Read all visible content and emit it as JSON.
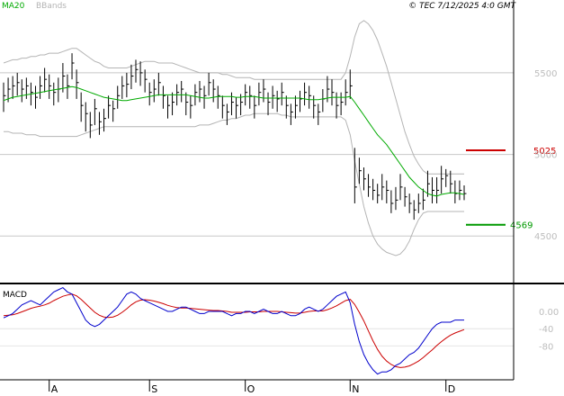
{
  "header": {
    "ma_label": "MA20",
    "bands_label": "BBands",
    "copyright": "© TEC 7/12/2025 4:0 GMT"
  },
  "colors": {
    "bars": "#000000",
    "ma": "#00aa00",
    "bands": "#b4b4b4",
    "grid": "#c8c8c8",
    "resistance": "#cc0000",
    "support": "#009900",
    "macd_line": "#0000cc",
    "signal_line": "#cc0000",
    "separator": "#000000"
  },
  "chart_data": [
    {
      "type": "ohlc",
      "name": "price",
      "x": [
        "Jul 18",
        "Jul 19",
        "Jul 22",
        "Jul 23",
        "Jul 24",
        "Jul 25",
        "Jul 26",
        "Jul 29",
        "Jul 30",
        "Jul 31",
        "Aug 1",
        "Aug 2",
        "Aug 5",
        "Aug 6",
        "Aug 7",
        "Aug 8",
        "Aug 9",
        "Aug 12",
        "Aug 13",
        "Aug 14",
        "Aug 15",
        "Aug 16",
        "Aug 19",
        "Aug 20",
        "Aug 21",
        "Aug 22",
        "Aug 23",
        "Aug 26",
        "Aug 27",
        "Aug 28",
        "Aug 29",
        "Aug 30",
        "Sep 2",
        "Sep 3",
        "Sep 4",
        "Sep 5",
        "Sep 6",
        "Sep 9",
        "Sep 10",
        "Sep 11",
        "Sep 12",
        "Sep 13",
        "Sep 16",
        "Sep 17",
        "Sep 18",
        "Sep 19",
        "Sep 20",
        "Sep 23",
        "Sep 24",
        "Sep 25",
        "Sep 26",
        "Sep 27",
        "Sep 30",
        "Oct 1",
        "Oct 2",
        "Oct 3",
        "Oct 4",
        "Oct 7",
        "Oct 8",
        "Oct 9",
        "Oct 10",
        "Oct 11",
        "Oct 14",
        "Oct 15",
        "Oct 16",
        "Oct 17",
        "Oct 18",
        "Oct 21",
        "Oct 22",
        "Oct 23",
        "Oct 24",
        "Oct 25",
        "Oct 28",
        "Oct 29",
        "Oct 30",
        "Oct 31",
        "Nov 1",
        "Nov 4",
        "Nov 5",
        "Nov 6",
        "Nov 7",
        "Nov 8",
        "Nov 11",
        "Nov 12",
        "Nov 13",
        "Nov 14",
        "Nov 15",
        "Nov 18",
        "Nov 19",
        "Nov 20",
        "Nov 21",
        "Nov 22",
        "Nov 25",
        "Nov 26",
        "Nov 27",
        "Nov 28",
        "Nov 29",
        "Dec 2",
        "Dec 3",
        "Dec 4",
        "Dec 5",
        "Dec 6"
      ],
      "close": [
        5360,
        5400,
        5420,
        5440,
        5400,
        5420,
        5380,
        5350,
        5420,
        5460,
        5420,
        5380,
        5400,
        5480,
        5420,
        5560,
        5440,
        5300,
        5250,
        5180,
        5280,
        5200,
        5220,
        5300,
        5280,
        5360,
        5420,
        5430,
        5480,
        5520,
        5500,
        5460,
        5380,
        5400,
        5440,
        5360,
        5300,
        5320,
        5380,
        5400,
        5320,
        5300,
        5380,
        5400,
        5360,
        5440,
        5400,
        5360,
        5300,
        5260,
        5320,
        5300,
        5320,
        5380,
        5360,
        5300,
        5380,
        5400,
        5320,
        5360,
        5340,
        5380,
        5300,
        5260,
        5300,
        5340,
        5380,
        5360,
        5300,
        5260,
        5340,
        5400,
        5380,
        5300,
        5320,
        5380,
        5420,
        4800,
        4900,
        4850,
        4800,
        4780,
        4750,
        4800,
        4780,
        4700,
        4720,
        4800,
        4740,
        4700,
        4660,
        4700,
        4720,
        4820,
        4780,
        4780,
        4850,
        4870,
        4820,
        4760,
        4780,
        4760
      ],
      "high": [
        5440,
        5470,
        5480,
        5500,
        5460,
        5470,
        5440,
        5420,
        5480,
        5530,
        5490,
        5440,
        5470,
        5560,
        5490,
        5620,
        5520,
        5380,
        5320,
        5260,
        5340,
        5260,
        5280,
        5360,
        5330,
        5420,
        5480,
        5500,
        5550,
        5580,
        5570,
        5520,
        5440,
        5460,
        5500,
        5420,
        5360,
        5380,
        5430,
        5450,
        5380,
        5360,
        5430,
        5450,
        5420,
        5500,
        5460,
        5420,
        5360,
        5310,
        5380,
        5350,
        5370,
        5430,
        5420,
        5360,
        5440,
        5460,
        5380,
        5420,
        5390,
        5440,
        5360,
        5310,
        5360,
        5390,
        5440,
        5420,
        5360,
        5310,
        5400,
        5480,
        5460,
        5380,
        5380,
        5460,
        5520,
        5040,
        4980,
        4920,
        4880,
        4850,
        4820,
        4880,
        4840,
        4780,
        4800,
        4880,
        4800,
        4760,
        4720,
        4760,
        4790,
        4900,
        4860,
        4860,
        4930,
        4910,
        4900,
        4840,
        4840,
        4810
      ],
      "low": [
        5260,
        5320,
        5340,
        5360,
        5320,
        5340,
        5300,
        5280,
        5340,
        5380,
        5340,
        5300,
        5320,
        5380,
        5340,
        5460,
        5340,
        5200,
        5140,
        5100,
        5180,
        5120,
        5140,
        5220,
        5200,
        5280,
        5340,
        5350,
        5400,
        5440,
        5420,
        5380,
        5300,
        5320,
        5360,
        5280,
        5220,
        5240,
        5300,
        5320,
        5240,
        5220,
        5300,
        5320,
        5280,
        5360,
        5320,
        5280,
        5220,
        5180,
        5240,
        5220,
        5240,
        5300,
        5280,
        5220,
        5300,
        5320,
        5240,
        5280,
        5260,
        5300,
        5220,
        5180,
        5220,
        5260,
        5300,
        5280,
        5220,
        5180,
        5260,
        5320,
        5300,
        5220,
        5240,
        5300,
        5340,
        4700,
        4820,
        4780,
        4740,
        4720,
        4700,
        4720,
        4700,
        4640,
        4660,
        4720,
        4680,
        4640,
        4600,
        4640,
        4660,
        4740,
        4700,
        4700,
        4760,
        4800,
        4760,
        4700,
        4720,
        4720
      ]
    },
    {
      "type": "line",
      "name": "MA20",
      "values": [
        5330,
        5340,
        5350,
        5355,
        5360,
        5365,
        5370,
        5375,
        5380,
        5385,
        5390,
        5395,
        5400,
        5405,
        5410,
        5415,
        5410,
        5400,
        5390,
        5380,
        5370,
        5360,
        5350,
        5345,
        5340,
        5335,
        5330,
        5330,
        5335,
        5340,
        5345,
        5350,
        5355,
        5360,
        5365,
        5365,
        5365,
        5365,
        5365,
        5365,
        5365,
        5360,
        5355,
        5350,
        5345,
        5345,
        5350,
        5355,
        5355,
        5355,
        5355,
        5350,
        5350,
        5355,
        5355,
        5355,
        5350,
        5345,
        5345,
        5345,
        5345,
        5345,
        5345,
        5345,
        5345,
        5345,
        5340,
        5335,
        5335,
        5335,
        5340,
        5345,
        5350,
        5350,
        5350,
        5350,
        5355,
        5320,
        5280,
        5240,
        5200,
        5160,
        5120,
        5090,
        5060,
        5020,
        4980,
        4940,
        4900,
        4860,
        4830,
        4800,
        4780,
        4760,
        4750,
        4745,
        4755,
        4760,
        4765,
        4765,
        4760,
        4755
      ]
    },
    {
      "type": "line",
      "name": "BBands upper",
      "values": [
        5560,
        5570,
        5580,
        5580,
        5590,
        5590,
        5600,
        5600,
        5610,
        5610,
        5620,
        5620,
        5620,
        5630,
        5640,
        5650,
        5650,
        5630,
        5610,
        5590,
        5570,
        5560,
        5540,
        5530,
        5530,
        5530,
        5530,
        5530,
        5540,
        5550,
        5560,
        5570,
        5570,
        5570,
        5560,
        5560,
        5560,
        5560,
        5550,
        5540,
        5530,
        5520,
        5510,
        5500,
        5500,
        5500,
        5500,
        5500,
        5490,
        5490,
        5480,
        5470,
        5470,
        5470,
        5470,
        5460,
        5460,
        5460,
        5460,
        5460,
        5460,
        5460,
        5460,
        5460,
        5460,
        5460,
        5460,
        5460,
        5460,
        5460,
        5460,
        5460,
        5460,
        5460,
        5460,
        5500,
        5600,
        5720,
        5800,
        5820,
        5800,
        5760,
        5700,
        5620,
        5540,
        5440,
        5340,
        5240,
        5140,
        5060,
        4990,
        4940,
        4900,
        4880,
        4880,
        4880,
        4880,
        4880,
        4880,
        4880,
        4880,
        4880
      ]
    },
    {
      "type": "line",
      "name": "BBands lower",
      "values": [
        5140,
        5140,
        5130,
        5130,
        5130,
        5120,
        5120,
        5120,
        5110,
        5110,
        5110,
        5110,
        5110,
        5110,
        5110,
        5110,
        5110,
        5120,
        5130,
        5140,
        5150,
        5160,
        5170,
        5170,
        5170,
        5170,
        5170,
        5170,
        5170,
        5170,
        5170,
        5170,
        5170,
        5170,
        5170,
        5170,
        5170,
        5170,
        5170,
        5170,
        5170,
        5170,
        5170,
        5180,
        5180,
        5180,
        5190,
        5200,
        5210,
        5210,
        5220,
        5220,
        5230,
        5240,
        5240,
        5250,
        5250,
        5250,
        5250,
        5250,
        5250,
        5240,
        5240,
        5230,
        5230,
        5230,
        5230,
        5230,
        5230,
        5230,
        5230,
        5230,
        5230,
        5230,
        5230,
        5210,
        5120,
        4960,
        4820,
        4680,
        4580,
        4500,
        4450,
        4420,
        4400,
        4390,
        4380,
        4390,
        4420,
        4470,
        4540,
        4600,
        4640,
        4650,
        4650,
        4650,
        4650,
        4650,
        4650,
        4650,
        4650,
        4650
      ]
    },
    {
      "type": "line",
      "name": "MACD",
      "title": "MACD",
      "values": [
        -15,
        -10,
        -5,
        5,
        15,
        20,
        25,
        20,
        15,
        25,
        35,
        45,
        50,
        55,
        45,
        40,
        20,
        0,
        -20,
        -30,
        -35,
        -30,
        -20,
        -10,
        0,
        10,
        25,
        40,
        45,
        40,
        30,
        25,
        20,
        15,
        10,
        5,
        0,
        0,
        5,
        10,
        10,
        5,
        0,
        -5,
        -5,
        0,
        0,
        0,
        0,
        -5,
        -10,
        -5,
        -5,
        0,
        0,
        -5,
        0,
        5,
        0,
        -5,
        -5,
        0,
        -5,
        -10,
        -10,
        -5,
        5,
        10,
        5,
        0,
        5,
        15,
        25,
        35,
        40,
        45,
        20,
        -30,
        -70,
        -100,
        -120,
        -135,
        -145,
        -140,
        -140,
        -135,
        -125,
        -120,
        -110,
        -100,
        -95,
        -85,
        -70,
        -55,
        -40,
        -30,
        -25,
        -25,
        -25,
        -20,
        -20,
        -20
      ],
      "yticks": [
        0,
        -40,
        -80
      ],
      "ytick_labels": [
        "0.00",
        "-40",
        "-80"
      ]
    },
    {
      "type": "line",
      "name": "MACD signal",
      "values": [
        -10,
        -9,
        -8,
        -5,
        -1,
        3,
        7,
        10,
        12,
        15,
        19,
        25,
        30,
        35,
        38,
        40,
        36,
        28,
        18,
        8,
        -2,
        -9,
        -13,
        -14,
        -13,
        -9,
        -2,
        6,
        15,
        22,
        26,
        27,
        26,
        24,
        21,
        18,
        14,
        11,
        9,
        8,
        8,
        7,
        6,
        5,
        4,
        3,
        2,
        2,
        1,
        0,
        -2,
        -2,
        -2,
        -2,
        -1,
        -1,
        -1,
        0,
        0,
        0,
        0,
        -1,
        -2,
        -3,
        -4,
        -4,
        -2,
        0,
        1,
        1,
        1,
        4,
        8,
        13,
        19,
        25,
        28,
        16,
        -2,
        -22,
        -45,
        -68,
        -88,
        -104,
        -115,
        -123,
        -128,
        -130,
        -129,
        -126,
        -121,
        -115,
        -107,
        -98,
        -89,
        -79,
        -70,
        -62,
        -55,
        -50,
        -46,
        -42
      ]
    },
    {
      "type": "axis",
      "y_tick_labels": [
        "5500",
        "5000",
        "4500"
      ],
      "y_ticks": [
        5500,
        5000,
        4500
      ],
      "y_range": [
        4220,
        5880
      ],
      "x_tick_labels": [
        "A",
        "S",
        "O",
        "N",
        "D"
      ],
      "x_tick_dates": [
        "Aug 1",
        "Sep 2",
        "Oct 1",
        "Nov 1",
        "Dec 2"
      ],
      "resistance": {
        "value": 5025,
        "label": "5025"
      },
      "support": {
        "value": 4569,
        "label": "4569"
      },
      "grid": true
    }
  ]
}
